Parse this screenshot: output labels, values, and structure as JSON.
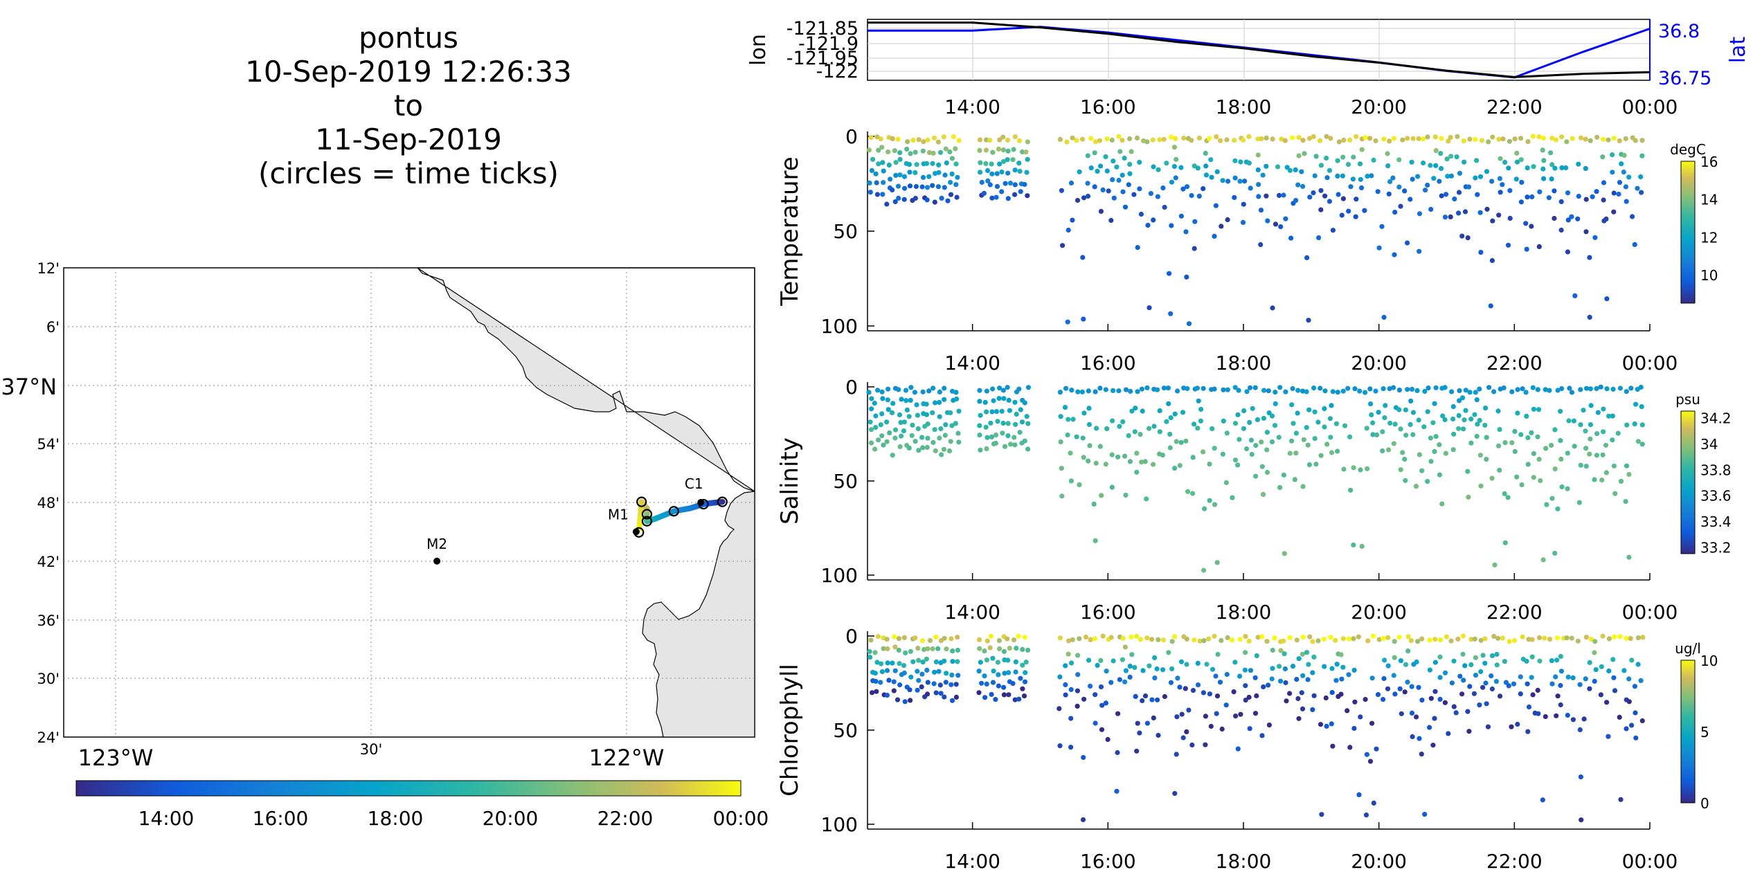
{
  "title": {
    "vehicle": "pontus",
    "start": "10-Sep-2019 12:26:33",
    "to": "to",
    "end": "11-Sep-2019",
    "note": "(circles = time ticks)"
  },
  "map": {
    "lat_ticks": [
      "12'",
      "6'",
      "37°N",
      "54'",
      "48'",
      "42'",
      "36'",
      "30'",
      "24'"
    ],
    "lon_ticks": [
      "123°W",
      "30'",
      "122°W"
    ],
    "land_color": "#e5e5e5",
    "stations": [
      {
        "name": "M2",
        "lon": -122.39,
        "lat": 36.7
      },
      {
        "name": "M1",
        "lon": -122.02,
        "lat": 36.75
      },
      {
        "name": "C1",
        "lon": -121.9,
        "lat": 36.8
      }
    ],
    "colorbar_ticks": [
      "14:00",
      "16:00",
      "18:00",
      "20:00",
      "22:00",
      "00:00"
    ],
    "track": {
      "time_range": [
        "12:26",
        "00:00"
      ],
      "lon": [
        -121.86,
        -121.88,
        -121.895,
        -121.92,
        -121.95,
        -121.985,
        -122.0,
        -122.0,
        -122.0,
        -122.0,
        -122.01,
        -122.015
      ],
      "lat": [
        36.801,
        36.799,
        36.797,
        36.79,
        36.785,
        36.772,
        36.768,
        36.77,
        36.78,
        36.79,
        36.801,
        36.749
      ]
    }
  },
  "time_axis_ticks": [
    "14:00",
    "16:00",
    "18:00",
    "20:00",
    "22:00",
    "00:00"
  ],
  "chart_data": [
    {
      "type": "line",
      "panel": "position",
      "ylabel_left": "lon",
      "ylabel_right": "lat",
      "yticks_left": [
        "-121.85",
        "-121.9",
        "-121.95",
        "-122"
      ],
      "yticks_right": [
        "36.8",
        "36.75"
      ],
      "ylim_left": [
        -122.02,
        -121.83
      ],
      "ylim_right": [
        36.745,
        36.81
      ],
      "x_hours": [
        12.45,
        13.0,
        14.0,
        15.0,
        16.0,
        17.0,
        18.0,
        19.0,
        20.0,
        21.0,
        22.0,
        23.0,
        24.0
      ],
      "series": [
        {
          "name": "lon",
          "color": "#000000",
          "values": [
            -121.84,
            -121.84,
            -121.84,
            -121.855,
            -121.875,
            -121.9,
            -121.92,
            -121.945,
            -121.965,
            -121.99,
            -122.01,
            -122.0,
            -121.995
          ]
        },
        {
          "name": "lat",
          "color": "#0000ff",
          "values": [
            36.798,
            36.798,
            36.798,
            36.802,
            36.796,
            36.788,
            36.78,
            36.772,
            36.764,
            36.755,
            36.748,
            36.775,
            36.8
          ]
        }
      ]
    },
    {
      "type": "scatter",
      "panel": "temperature",
      "ylabel": "Temperature",
      "yticks": [
        "0",
        "50",
        "100"
      ],
      "ylim": [
        100,
        0
      ],
      "colorbar": {
        "unit": "degC",
        "ticks": [
          "16",
          "14",
          "12",
          "10"
        ],
        "range": [
          8.5,
          16
        ]
      },
      "description_stats": {
        "surface_value": 15.5,
        "deep_value": 9.5
      }
    },
    {
      "type": "scatter",
      "panel": "salinity",
      "ylabel": "Salinity",
      "yticks": [
        "0",
        "50",
        "100"
      ],
      "ylim": [
        100,
        0
      ],
      "colorbar": {
        "unit": "psu",
        "ticks": [
          "34.2",
          "34",
          "33.8",
          "33.6",
          "33.4",
          "33.2"
        ],
        "range": [
          33.15,
          34.25
        ]
      },
      "description_stats": {
        "surface_value": 33.55,
        "deep_value": 33.9
      }
    },
    {
      "type": "scatter",
      "panel": "chlorophyll",
      "ylabel": "Chlorophyll",
      "yticks": [
        "0",
        "50",
        "100"
      ],
      "ylim": [
        100,
        0
      ],
      "colorbar": {
        "unit": "ug/l",
        "ticks": [
          "10",
          "5",
          "0"
        ],
        "range": [
          0,
          10
        ]
      },
      "description_stats": {
        "surface_value": 9.5,
        "deep_value": 0.5
      }
    }
  ]
}
